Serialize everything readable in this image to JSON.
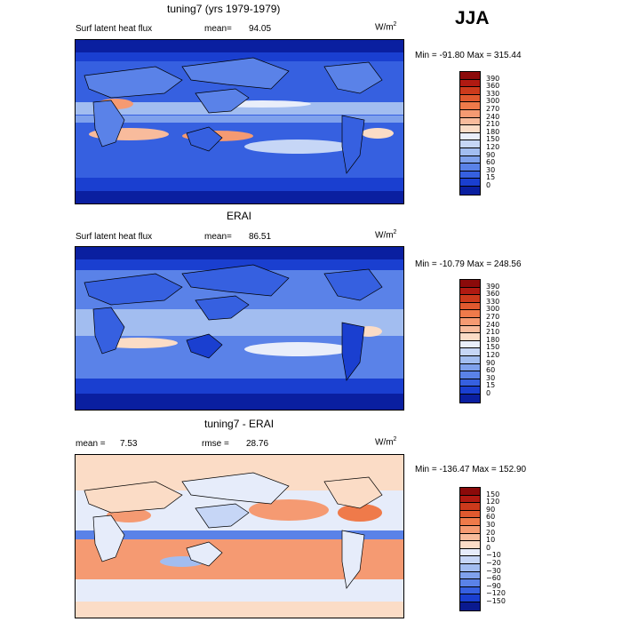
{
  "season": "JJA",
  "panels": [
    {
      "title": "tuning7 (yrs 1979-1979)",
      "left_label": "Surf latent heat flux",
      "stat_label": "mean=",
      "stat_value": "94.05",
      "units": "W/m",
      "units_exp": "2",
      "minmax": "Min = -91.80 Max = 315.44",
      "colorbar": {
        "labels": [
          "390",
          "360",
          "330",
          "300",
          "270",
          "240",
          "210",
          "180",
          "150",
          "120",
          "90",
          "60",
          "30",
          "15",
          "0"
        ],
        "colors": [
          "#8b0a0a",
          "#b01a12",
          "#cc3a1c",
          "#e0592f",
          "#ef7a4a",
          "#f59a72",
          "#f8bb9c",
          "#fbdcc6",
          "#e9eefa",
          "#c6d6f6",
          "#a2bdf0",
          "#7fa1ec",
          "#5a82e8",
          "#3660e0",
          "#1a3fd0",
          "#0a1fa0"
        ]
      },
      "chart_data": {
        "type": "heatmap",
        "title": "tuning7 (yrs 1979-1979)",
        "variable": "Surf latent heat flux",
        "units": "W/m^2",
        "mean": 94.05,
        "min": -91.8,
        "max": 315.44,
        "levels": [
          0,
          15,
          30,
          60,
          90,
          120,
          150,
          180,
          210,
          240,
          270,
          300,
          330,
          360,
          390
        ]
      }
    },
    {
      "title": "ERAI",
      "left_label": "Surf latent heat flux",
      "stat_label": "mean=",
      "stat_value": "86.51",
      "units": "W/m",
      "units_exp": "2",
      "minmax": "Min = -10.79 Max = 248.56",
      "colorbar": {
        "labels": [
          "390",
          "360",
          "330",
          "300",
          "270",
          "240",
          "210",
          "180",
          "150",
          "120",
          "90",
          "60",
          "30",
          "15",
          "0"
        ],
        "colors": [
          "#8b0a0a",
          "#b01a12",
          "#cc3a1c",
          "#e0592f",
          "#ef7a4a",
          "#f59a72",
          "#f8bb9c",
          "#fbdcc6",
          "#e9eefa",
          "#c6d6f6",
          "#a2bdf0",
          "#7fa1ec",
          "#5a82e8",
          "#3660e0",
          "#1a3fd0",
          "#0a1fa0"
        ]
      },
      "chart_data": {
        "type": "heatmap",
        "title": "ERAI",
        "variable": "Surf latent heat flux",
        "units": "W/m^2",
        "mean": 86.51,
        "min": -10.79,
        "max": 248.56,
        "levels": [
          0,
          15,
          30,
          60,
          90,
          120,
          150,
          180,
          210,
          240,
          270,
          300,
          330,
          360,
          390
        ]
      }
    },
    {
      "title": "tuning7 - ERAI",
      "left_label": "mean =",
      "left_value": "7.53",
      "stat_label": "rmse =",
      "stat_value": "28.76",
      "units": "W/m",
      "units_exp": "2",
      "minmax": "Min = -136.47 Max = 152.90",
      "colorbar": {
        "labels": [
          "150",
          "120",
          "90",
          "60",
          "30",
          "20",
          "10",
          "0",
          "−10",
          "−20",
          "−30",
          "−60",
          "−90",
          "−120",
          "−150"
        ],
        "colors": [
          "#8b0a0a",
          "#b01a12",
          "#cc3a1c",
          "#e0592f",
          "#ef7a4a",
          "#f59a72",
          "#f8bb9c",
          "#fbdcc6",
          "#e6ecfa",
          "#c6d6f6",
          "#a2bdf0",
          "#7fa1ec",
          "#5a82e8",
          "#3660e0",
          "#1a3fd0",
          "#0a1a90"
        ]
      },
      "chart_data": {
        "type": "heatmap",
        "title": "tuning7 - ERAI",
        "units": "W/m^2",
        "mean": 7.53,
        "rmse": 28.76,
        "min": -136.47,
        "max": 152.9,
        "levels": [
          -150,
          -120,
          -90,
          -60,
          -30,
          -20,
          -10,
          0,
          10,
          20,
          30,
          60,
          90,
          120,
          150
        ]
      }
    }
  ]
}
